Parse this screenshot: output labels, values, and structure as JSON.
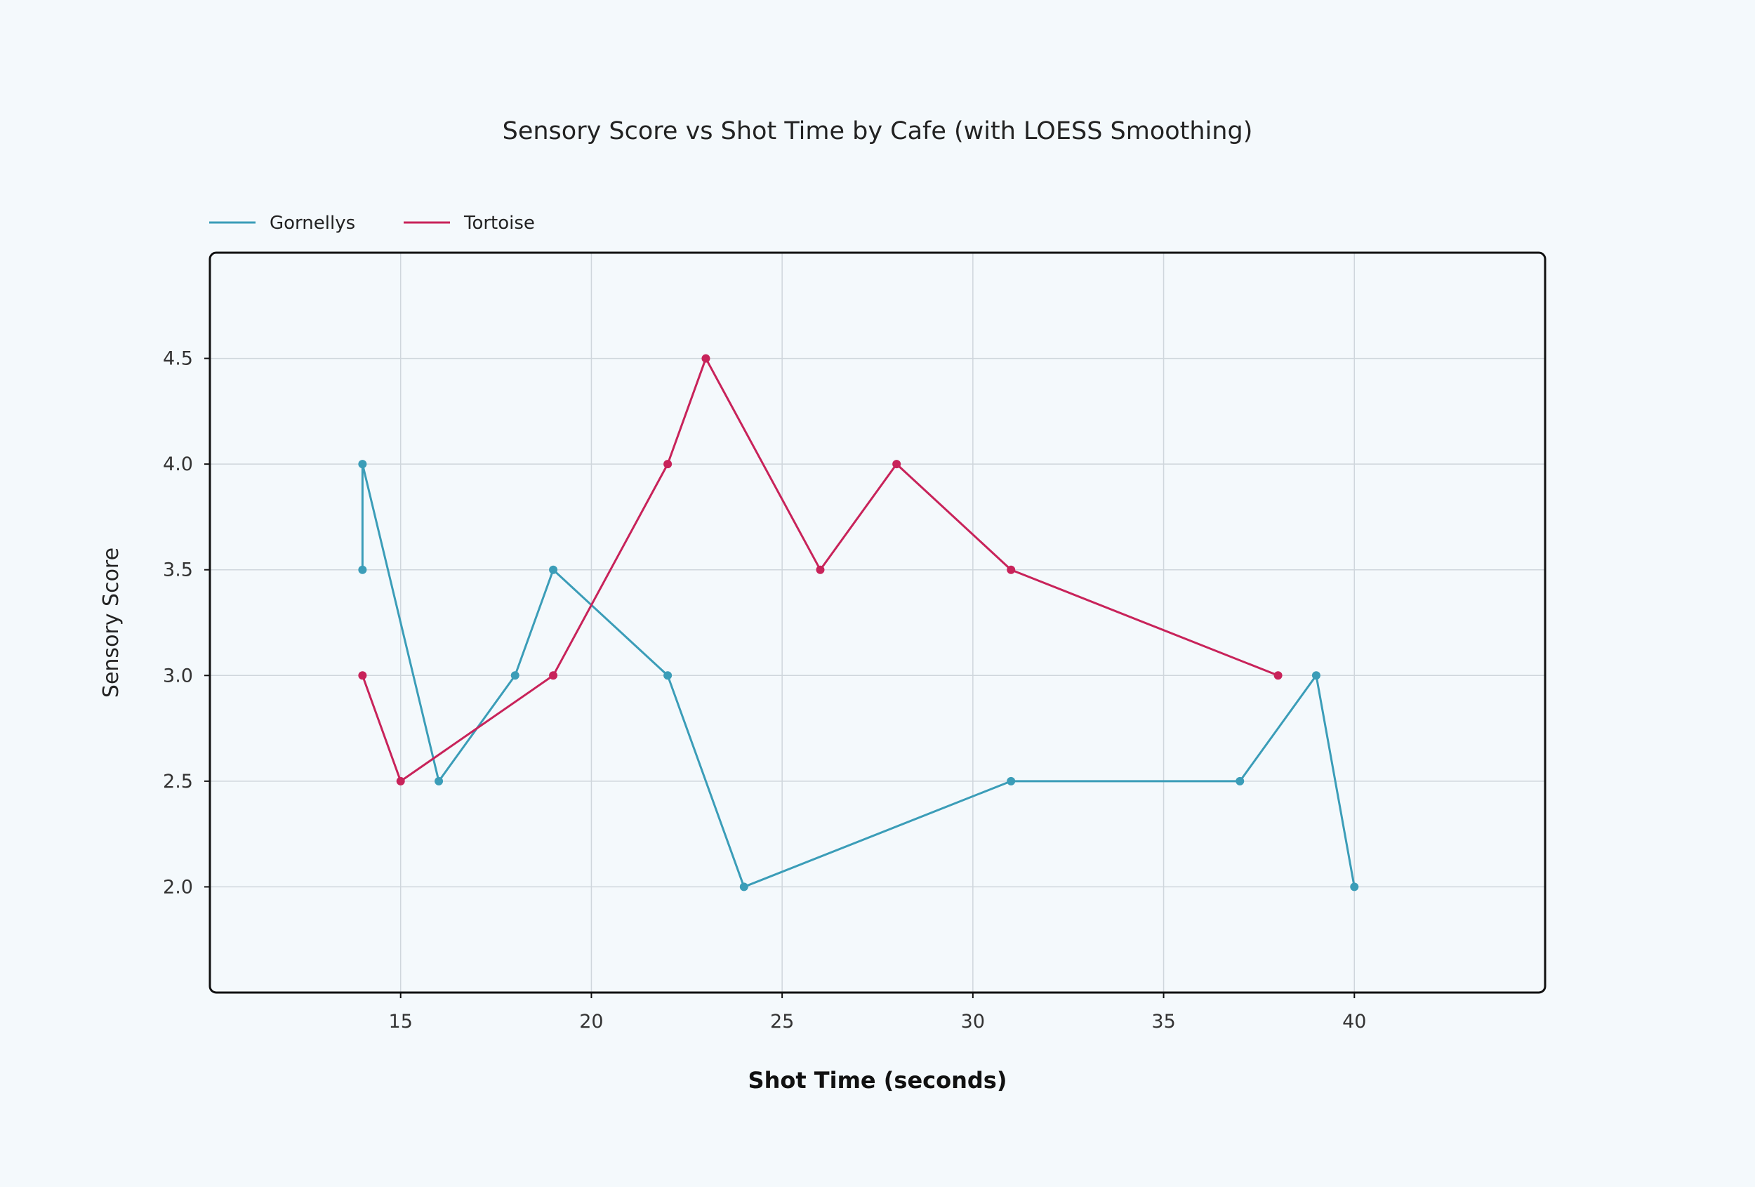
{
  "chart_data": {
    "type": "line",
    "title": "Sensory Score vs Shot Time by Cafe (with LOESS Smoothing)",
    "xlabel": "Shot Time (seconds)",
    "ylabel": "Sensory Score",
    "xlim": [
      10,
      45
    ],
    "ylim": [
      1.5,
      5.0
    ],
    "xticks": [
      15,
      20,
      25,
      30,
      35,
      40
    ],
    "yticks": [
      2.0,
      2.5,
      3.0,
      3.5,
      4.0,
      4.5
    ],
    "xtick_labels": [
      "15",
      "20",
      "25",
      "30",
      "35",
      "40"
    ],
    "ytick_labels": [
      "2.0",
      "2.5",
      "3.0",
      "3.5",
      "4.0",
      "4.5"
    ],
    "grid": true,
    "legend_position": "top-left",
    "series": [
      {
        "name": "Gornellys",
        "color": "#3b9db8",
        "points": [
          {
            "x": 14,
            "y": 3.5
          },
          {
            "x": 14,
            "y": 4.0
          },
          {
            "x": 16,
            "y": 2.5
          },
          {
            "x": 18,
            "y": 3.0
          },
          {
            "x": 19,
            "y": 3.5
          },
          {
            "x": 22,
            "y": 3.0
          },
          {
            "x": 24,
            "y": 2.0
          },
          {
            "x": 31,
            "y": 2.5
          },
          {
            "x": 37,
            "y": 2.5
          },
          {
            "x": 39,
            "y": 3.0
          },
          {
            "x": 40,
            "y": 2.0
          }
        ]
      },
      {
        "name": "Tortoise",
        "color": "#c8235a",
        "points": [
          {
            "x": 14,
            "y": 3.0
          },
          {
            "x": 15,
            "y": 2.5
          },
          {
            "x": 19,
            "y": 3.0
          },
          {
            "x": 22,
            "y": 4.0
          },
          {
            "x": 23,
            "y": 4.5
          },
          {
            "x": 26,
            "y": 3.5
          },
          {
            "x": 28,
            "y": 4.0
          },
          {
            "x": 31,
            "y": 3.5
          },
          {
            "x": 38,
            "y": 3.0
          }
        ]
      }
    ]
  }
}
